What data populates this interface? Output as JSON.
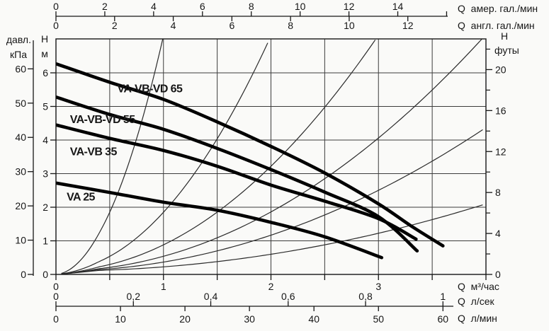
{
  "colors": {
    "background": "#fafaf8",
    "ink": "#161616",
    "grid": "#3c3c3c",
    "thin_curve": "#2a2a2a",
    "pump_curve": "#000000"
  },
  "chart_data": {
    "type": "line",
    "description": "Pump head-flow performance curves with system resistance parabolas",
    "x_range_m3h": [
      0,
      4
    ],
    "y_range_m": [
      0,
      7.01
    ],
    "grid": {
      "x_step_m3h": 0.5,
      "y_step_m": 1,
      "grid_on": true
    },
    "axes": {
      "top": [
        {
          "id": "q-us-gpm",
          "label": "Q  амер. гал./мин",
          "ticks": [
            0,
            2,
            4,
            6,
            8,
            10,
            12,
            14
          ],
          "unlabeled_ticks": [
            16
          ],
          "m3h_per_unit": 0.22712,
          "side": "above"
        },
        {
          "id": "q-imp-gpm",
          "label": "Q  англ. гал./мин",
          "ticks": [
            0,
            2,
            4,
            6,
            8,
            10,
            12
          ],
          "unlabeled_ticks": [],
          "m3h_per_unit": 0.27277,
          "side": "below"
        }
      ],
      "bottom_edge": {
        "id": "q-m3h",
        "label": "Q  м³/час",
        "labeled_ticks": [
          0,
          1,
          2,
          3
        ],
        "minor_tick_step": 0.5
      },
      "bottom": [
        {
          "id": "q-l-s",
          "label": "Q  л/сек",
          "m3h_per_unit": 3.6,
          "ticks": [
            {
              "v": 0,
              "t": "0"
            },
            {
              "v": 0.2,
              "t": "0,2"
            },
            {
              "v": 0.4,
              "t": "0,4"
            },
            {
              "v": 0.6,
              "t": "0,6"
            },
            {
              "v": 0.8,
              "t": "0,8"
            },
            {
              "v": 1,
              "t": "1"
            }
          ],
          "side": "above"
        },
        {
          "id": "q-l-min",
          "label": "Q  л/мин",
          "m3h_per_unit": 0.06,
          "ticks": [
            {
              "v": 0,
              "t": "0"
            },
            {
              "v": 10,
              "t": "10"
            },
            {
              "v": 20,
              "t": "20"
            },
            {
              "v": 30,
              "t": "30"
            },
            {
              "v": 40,
              "t": "40"
            },
            {
              "v": 50,
              "t": "50"
            },
            {
              "v": 60,
              "t": "60"
            }
          ],
          "side": "below"
        }
      ],
      "left_kpa": {
        "header": [
          "давл.",
          "кПа"
        ],
        "ticks": [
          0,
          10,
          20,
          30,
          40,
          50,
          60
        ],
        "m_per_unit": 0.10197
      },
      "left_m": {
        "header": [
          "H",
          "м"
        ],
        "ticks": [
          0,
          1,
          2,
          3,
          4,
          5,
          6
        ]
      },
      "right_ft": {
        "header": [
          "H",
          "футы"
        ],
        "ticks": [
          0,
          4,
          8,
          12,
          16,
          20
        ],
        "minor_ticks": [
          2,
          6,
          10,
          14,
          18,
          22
        ],
        "m_per_unit": 0.3048
      }
    },
    "pump_curves": [
      {
        "label": "VA-VB-VD 65",
        "points": [
          [
            0,
            6.27
          ],
          [
            0.5,
            5.72
          ],
          [
            1,
            5.21
          ],
          [
            1.5,
            4.54
          ],
          [
            2,
            3.81
          ],
          [
            2.5,
            3.02
          ],
          [
            3,
            2.1
          ],
          [
            3.3,
            1.45
          ],
          [
            3.6,
            0.85
          ]
        ],
        "label_pos": [
          0.57,
          5.42
        ]
      },
      {
        "label": "VA-VB-VD 55",
        "points": [
          [
            0,
            5.28
          ],
          [
            0.5,
            4.76
          ],
          [
            1,
            4.32
          ],
          [
            1.5,
            3.75
          ],
          [
            2,
            3.12
          ],
          [
            2.5,
            2.45
          ],
          [
            3,
            1.72
          ],
          [
            3.36,
            0.7
          ]
        ],
        "label_pos": [
          0.13,
          4.5
        ]
      },
      {
        "label": "VA-VB 35",
        "points": [
          [
            0,
            4.45
          ],
          [
            0.5,
            4.05
          ],
          [
            1,
            3.69
          ],
          [
            1.5,
            3.22
          ],
          [
            2,
            2.66
          ],
          [
            2.5,
            2.18
          ],
          [
            3,
            1.66
          ],
          [
            3.35,
            1.05
          ]
        ],
        "label_pos": [
          0.13,
          3.55
        ]
      },
      {
        "label": "VA 25",
        "points": [
          [
            0,
            2.72
          ],
          [
            0.5,
            2.44
          ],
          [
            1,
            2.15
          ],
          [
            1.5,
            1.91
          ],
          [
            2,
            1.55
          ],
          [
            2.5,
            1.12
          ],
          [
            3.03,
            0.5
          ]
        ],
        "label_pos": [
          0.1,
          2.2
        ]
      }
    ],
    "system_curves": {
      "h_offset": 0.1,
      "k_values": [
        7,
        1.75,
        0.78,
        0.44,
        0.267,
        0.125
      ]
    }
  }
}
